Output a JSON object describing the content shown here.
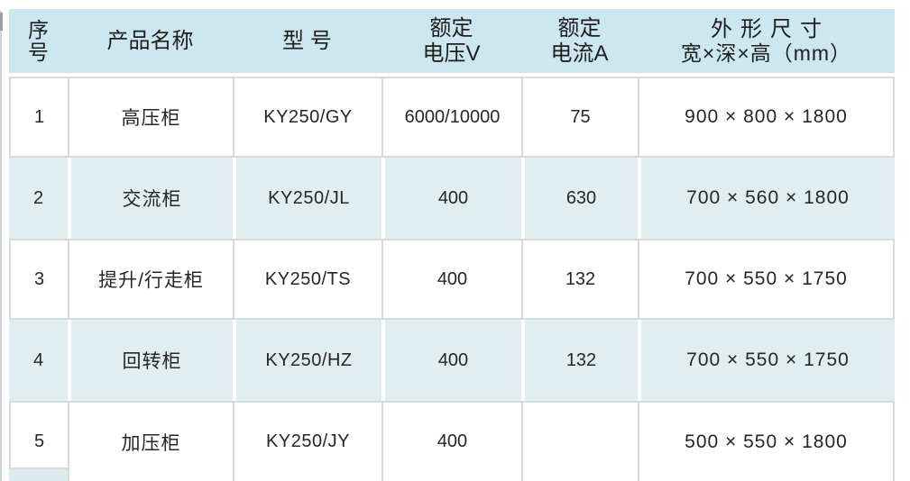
{
  "document": {
    "kind": "product-specification-table",
    "colors": {
      "header_bg": "#cde7f1",
      "row_tint_bg": "#e1eef0",
      "row_white_bg": "#ffffff",
      "cell_border": "#d8dbdc",
      "text": "#262626"
    }
  },
  "table": {
    "header": {
      "cols": [
        {
          "line1": "序",
          "line2": "号"
        },
        {
          "line1": "产品名称",
          "line2": ""
        },
        {
          "line1": "型 号",
          "line2": ""
        },
        {
          "line1": "额定",
          "line2": "电压V"
        },
        {
          "line1": "额定",
          "line2": "电流A"
        },
        {
          "line1": "外形尺寸",
          "line2": "宽×深×高（mm）"
        }
      ]
    },
    "rows": [
      {
        "no": "1",
        "name": "高压柜",
        "model": "KY250/GY",
        "voltage": "6000/10000",
        "current": "75",
        "dimensions": "900 × 800 × 1800"
      },
      {
        "no": "2",
        "name": "交流柜",
        "model": "KY250/JL",
        "voltage": "400",
        "current": "630",
        "dimensions": "700 × 560 × 1800"
      },
      {
        "no": "3",
        "name": "提升/行走柜",
        "model": "KY250/TS",
        "voltage": "400",
        "current": "132",
        "dimensions": "700 × 550 × 1750"
      },
      {
        "no": "4",
        "name": "回转柜",
        "model": "KY250/HZ",
        "voltage": "400",
        "current": "132",
        "dimensions": "700 × 550 × 1750"
      },
      {
        "no": "5",
        "name": "加压柜",
        "model": "KY250/JY",
        "voltage": "400",
        "current": "",
        "dimensions": "500 × 550 × 1800"
      }
    ]
  }
}
